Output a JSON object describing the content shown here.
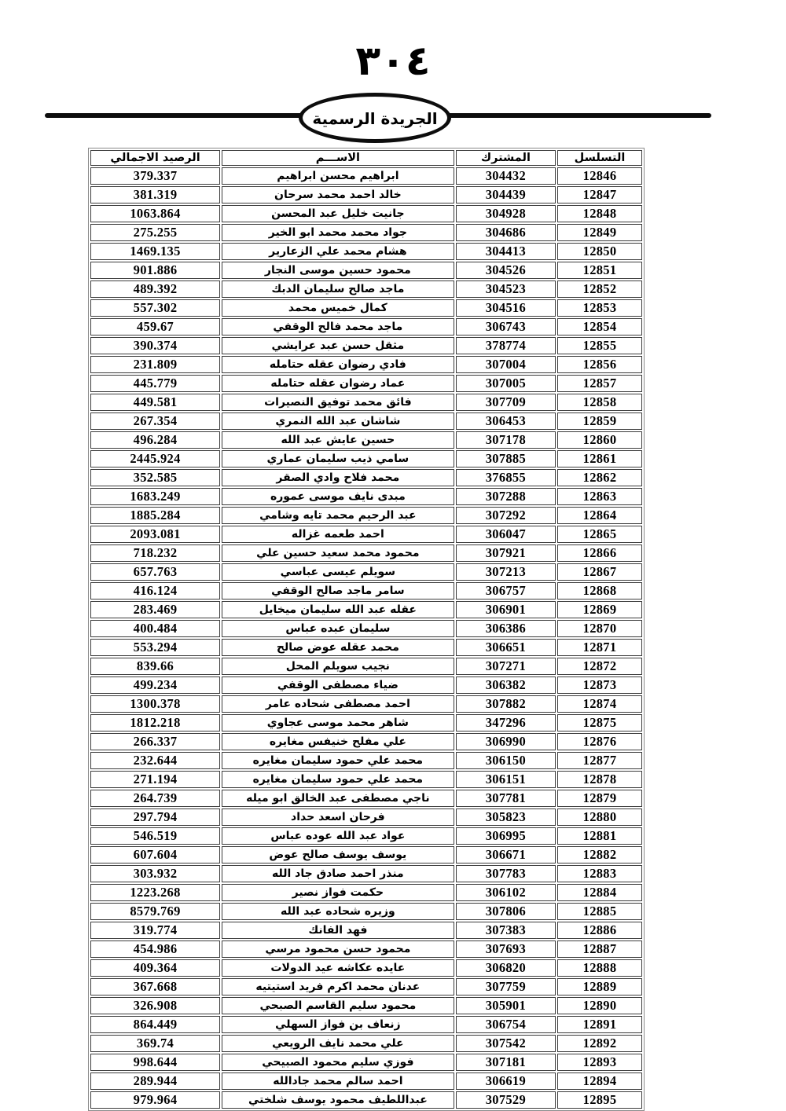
{
  "page": {
    "page_number": "٣٠٤",
    "banner_label": "الجريدة الرسمية"
  },
  "table": {
    "headers": {
      "serial": "التسلسل",
      "subscriber": "المشترك",
      "name": "الاســـم",
      "balance": "الرصيد الاجمالي"
    },
    "rows": [
      {
        "serial": "12846",
        "subscriber": "304432",
        "name": "ابراهيم محسن ابراهيم",
        "balance": "379.337"
      },
      {
        "serial": "12847",
        "subscriber": "304439",
        "name": "خالد احمد محمد سرحان",
        "balance": "381.319"
      },
      {
        "serial": "12848",
        "subscriber": "304928",
        "name": "جانيت خليل عبد المحسن",
        "balance": "1063.864"
      },
      {
        "serial": "12849",
        "subscriber": "304686",
        "name": "جواد محمد محمد ابو الخير",
        "balance": "275.255"
      },
      {
        "serial": "12850",
        "subscriber": "304413",
        "name": "هشام محمد علي الزعارير",
        "balance": "1469.135"
      },
      {
        "serial": "12851",
        "subscriber": "304526",
        "name": "محمود حسين موسى النجار",
        "balance": "901.886"
      },
      {
        "serial": "12852",
        "subscriber": "304523",
        "name": "ماجد صالح سليمان الدبك",
        "balance": "489.392"
      },
      {
        "serial": "12853",
        "subscriber": "304516",
        "name": "كمال خميس محمد",
        "balance": "557.302"
      },
      {
        "serial": "12854",
        "subscriber": "306743",
        "name": "ماجد محمد فالح الوقفي",
        "balance": "459.67"
      },
      {
        "serial": "12855",
        "subscriber": "378774",
        "name": "مثقل حسن عبد عرايشي",
        "balance": "390.374"
      },
      {
        "serial": "12856",
        "subscriber": "307004",
        "name": "فادي رضوان عقله حتامله",
        "balance": "231.809"
      },
      {
        "serial": "12857",
        "subscriber": "307005",
        "name": "عماد رضوان عقله حتامله",
        "balance": "445.779"
      },
      {
        "serial": "12858",
        "subscriber": "307709",
        "name": "فائق محمد توفيق النصيرات",
        "balance": "449.581"
      },
      {
        "serial": "12859",
        "subscriber": "306453",
        "name": "شاشان عبد الله النمري",
        "balance": "267.354"
      },
      {
        "serial": "12860",
        "subscriber": "307178",
        "name": "حسين عايش عبد الله",
        "balance": "496.284"
      },
      {
        "serial": "12861",
        "subscriber": "307885",
        "name": "سامي ذيب سليمان عماري",
        "balance": "2445.924"
      },
      {
        "serial": "12862",
        "subscriber": "376855",
        "name": "محمد فلاح وادي الصقر",
        "balance": "352.585"
      },
      {
        "serial": "12863",
        "subscriber": "307288",
        "name": "مبدى نايف موسى عموره",
        "balance": "1683.249"
      },
      {
        "serial": "12864",
        "subscriber": "307292",
        "name": "عبد الرحيم محمد تايه وشامي",
        "balance": "1885.284"
      },
      {
        "serial": "12865",
        "subscriber": "306047",
        "name": "احمد طعمه غزاله",
        "balance": "2093.081"
      },
      {
        "serial": "12866",
        "subscriber": "307921",
        "name": "محمود محمد سعيد حسين علي",
        "balance": "718.232"
      },
      {
        "serial": "12867",
        "subscriber": "307213",
        "name": "سويلم عيسى عباسي",
        "balance": "657.763"
      },
      {
        "serial": "12868",
        "subscriber": "306757",
        "name": "سامر ماجد صالح الوقفي",
        "balance": "416.124"
      },
      {
        "serial": "12869",
        "subscriber": "306901",
        "name": "عقله عبد الله سليمان ميخايل",
        "balance": "283.469"
      },
      {
        "serial": "12870",
        "subscriber": "306386",
        "name": "سليمان عبده عباس",
        "balance": "400.484"
      },
      {
        "serial": "12871",
        "subscriber": "306651",
        "name": "محمد عقله عوض صالح",
        "balance": "553.294"
      },
      {
        "serial": "12872",
        "subscriber": "307271",
        "name": "نجيب سويلم المحل",
        "balance": "839.66"
      },
      {
        "serial": "12873",
        "subscriber": "306382",
        "name": "ضياء مصطفى الوقفي",
        "balance": "499.234"
      },
      {
        "serial": "12874",
        "subscriber": "307882",
        "name": "احمد مصطفى شحاده عامر",
        "balance": "1300.378"
      },
      {
        "serial": "12875",
        "subscriber": "347296",
        "name": "شاهر محمد موسى عجاوي",
        "balance": "1812.218"
      },
      {
        "serial": "12876",
        "subscriber": "306990",
        "name": "علي مفلح خنيفس مغايره",
        "balance": "266.337"
      },
      {
        "serial": "12877",
        "subscriber": "306150",
        "name": "محمد علي حمود سليمان مغايره",
        "balance": "232.644"
      },
      {
        "serial": "12878",
        "subscriber": "306151",
        "name": "محمد علي حمود سليمان مغايره",
        "balance": "271.194"
      },
      {
        "serial": "12879",
        "subscriber": "307781",
        "name": "ناجي مصطفى عبد الخالق ابو ميله",
        "balance": "264.739"
      },
      {
        "serial": "12880",
        "subscriber": "305823",
        "name": "فرحان اسعد حداد",
        "balance": "297.794"
      },
      {
        "serial": "12881",
        "subscriber": "306995",
        "name": "عواد عبد الله عوده عباس",
        "balance": "546.519"
      },
      {
        "serial": "12882",
        "subscriber": "306671",
        "name": "يوسف يوسف صالح عوض",
        "balance": "607.604"
      },
      {
        "serial": "12883",
        "subscriber": "307783",
        "name": "منذر احمد صادق جاد الله",
        "balance": "303.932"
      },
      {
        "serial": "12884",
        "subscriber": "306102",
        "name": "حكمت فواز نصير",
        "balance": "1223.268"
      },
      {
        "serial": "12885",
        "subscriber": "307806",
        "name": "وزيره شحاده عبد الله",
        "balance": "8579.769"
      },
      {
        "serial": "12886",
        "subscriber": "307383",
        "name": "فهد الفانك",
        "balance": "319.774"
      },
      {
        "serial": "12887",
        "subscriber": "307693",
        "name": "محمود حسن محمود مرسي",
        "balance": "454.986"
      },
      {
        "serial": "12888",
        "subscriber": "306820",
        "name": "عايده عكاشه عيد الدولات",
        "balance": "409.364"
      },
      {
        "serial": "12889",
        "subscriber": "307759",
        "name": "عدنان محمد اكرم فريد استيتيه",
        "balance": "367.668"
      },
      {
        "serial": "12890",
        "subscriber": "305901",
        "name": "محمود سليم القاسم الصبحي",
        "balance": "326.908"
      },
      {
        "serial": "12891",
        "subscriber": "306754",
        "name": "زنعاف بن فواز السهلي",
        "balance": "864.449"
      },
      {
        "serial": "12892",
        "subscriber": "307542",
        "name": "علي محمد نايف الرويعي",
        "balance": "369.74"
      },
      {
        "serial": "12893",
        "subscriber": "307181",
        "name": "فوزي سليم محمود الصبيحي",
        "balance": "998.644"
      },
      {
        "serial": "12894",
        "subscriber": "306619",
        "name": "احمد سالم محمد جادالله",
        "balance": "289.944"
      },
      {
        "serial": "12895",
        "subscriber": "307529",
        "name": "عبداللطيف محمود يوسف شلختي",
        "balance": "979.964"
      }
    ]
  }
}
